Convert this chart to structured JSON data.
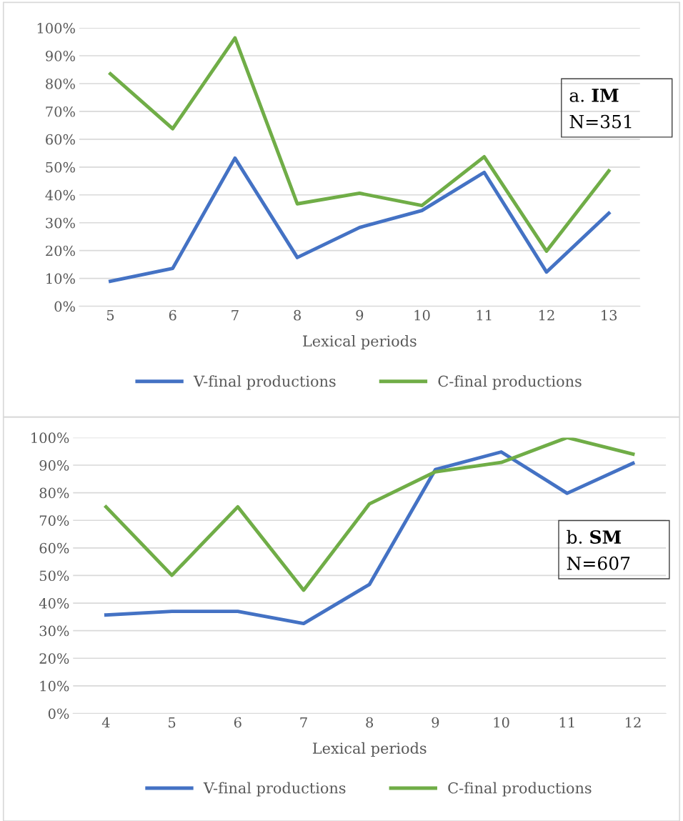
{
  "chart_data": [
    {
      "type": "line",
      "categories": [
        "5",
        "6",
        "7",
        "8",
        "9",
        "10",
        "11",
        "12",
        "13"
      ],
      "xlabel": "Lexical periods",
      "series": [
        {
          "name": "V-final productions",
          "color": "#4472c4",
          "values": [
            9,
            13.6,
            53.2,
            17.5,
            28.3,
            34.4,
            48.1,
            12.3,
            33.4
          ]
        },
        {
          "name": "C-final productions",
          "color": "#70ad47",
          "values": [
            83.5,
            63.8,
            96.4,
            36.8,
            40.6,
            36.2,
            53.7,
            19.8,
            48.6
          ]
        }
      ],
      "ylim": [
        0,
        100
      ],
      "yticks": [
        {
          "value": 0,
          "label": "0%"
        },
        {
          "value": 10,
          "label": "10%"
        },
        {
          "value": 20,
          "label": "20%"
        },
        {
          "value": 30,
          "label": "30%"
        },
        {
          "value": 40,
          "label": "40%"
        },
        {
          "value": 50,
          "label": "50%"
        },
        {
          "value": 60,
          "label": "60%"
        },
        {
          "value": 70,
          "label": "70%"
        },
        {
          "value": 80,
          "label": "80%"
        },
        {
          "value": 90,
          "label": "90%"
        },
        {
          "value": 100,
          "label": "100%"
        }
      ],
      "annotations": [
        "a. IM",
        "N=351"
      ],
      "grid": "y",
      "legend": "bottom",
      "marker": "none",
      "line_style": "solid"
    },
    {
      "type": "line",
      "categories": [
        "4",
        "5",
        "6",
        "7",
        "8",
        "9",
        "10",
        "11",
        "12"
      ],
      "xlabel": "Lexical periods",
      "series": [
        {
          "name": "V-final productions",
          "color": "#4472c4",
          "values": [
            35.7,
            37,
            37,
            32.6,
            46.8,
            88.4,
            94.8,
            79.8,
            90.7
          ]
        },
        {
          "name": "C-final productions",
          "color": "#70ad47",
          "values": [
            74.9,
            50.1,
            74.9,
            44.7,
            76,
            87.6,
            91,
            100,
            94
          ]
        }
      ],
      "ylim": [
        0,
        100
      ],
      "yticks": [
        {
          "value": 0,
          "label": "0%"
        },
        {
          "value": 10,
          "label": "10%"
        },
        {
          "value": 20,
          "label": "20%"
        },
        {
          "value": 30,
          "label": "30%"
        },
        {
          "value": 40,
          "label": "40%"
        },
        {
          "value": 50,
          "label": "50%"
        },
        {
          "value": 60,
          "label": "60%"
        },
        {
          "value": 70,
          "label": "70%"
        },
        {
          "value": 80,
          "label": "80%"
        },
        {
          "value": 90,
          "label": "90%"
        },
        {
          "value": 100,
          "label": "100%"
        }
      ],
      "annotations": [
        "b. SM",
        "N=607"
      ],
      "grid": "y",
      "legend": "bottom",
      "marker": "none",
      "line_style": "solid"
    }
  ]
}
